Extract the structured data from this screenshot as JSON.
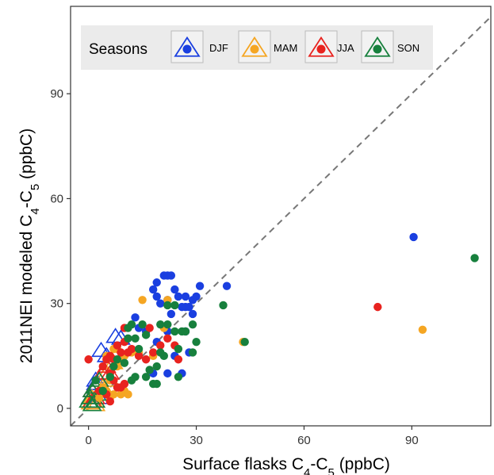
{
  "chart_data": {
    "type": "scatter",
    "xlabel": {
      "main": "Surface flasks C",
      "sub1": "4",
      "mid": "-C",
      "sub2": "5",
      "unit": " (ppbC)"
    },
    "ylabel": {
      "main": "2011NEI modeled C",
      "sub1": "4",
      "mid": "-C",
      "sub2": "5",
      "unit": " (ppbC)"
    },
    "xlim": [
      -5,
      112
    ],
    "ylim": [
      -5,
      115
    ],
    "x_ticks": [
      0,
      30,
      60,
      90
    ],
    "y_ticks": [
      0,
      30,
      60,
      90
    ],
    "grid": false,
    "reference_line": {
      "type": "1:1",
      "style": "dashed",
      "color": "#777777"
    },
    "legend": {
      "title": "Seasons",
      "position": "top-left",
      "entries": [
        {
          "label": "DJF",
          "color": "#1a3fe0"
        },
        {
          "label": "MAM",
          "color": "#f5a623"
        },
        {
          "label": "JJA",
          "color": "#e8231f"
        },
        {
          "label": "SON",
          "color": "#17803d"
        }
      ]
    },
    "series": [
      {
        "name": "DJF",
        "color": "#1a3fe0",
        "points": [
          [
            90.5,
            49
          ],
          [
            38.5,
            35
          ],
          [
            31,
            35
          ],
          [
            21,
            38
          ],
          [
            22,
            38
          ],
          [
            23,
            38
          ],
          [
            19,
            36
          ],
          [
            18,
            34
          ],
          [
            24,
            34
          ],
          [
            25,
            32
          ],
          [
            27,
            32
          ],
          [
            29,
            31
          ],
          [
            22,
            31
          ],
          [
            19,
            32
          ],
          [
            20,
            30
          ],
          [
            30,
            32
          ],
          [
            27,
            29
          ],
          [
            23,
            27
          ],
          [
            26,
            29
          ],
          [
            28,
            29
          ],
          [
            29,
            27
          ],
          [
            13,
            26
          ],
          [
            16,
            22
          ],
          [
            14,
            23
          ],
          [
            27,
            22
          ],
          [
            22,
            22
          ],
          [
            28,
            16
          ],
          [
            22,
            10
          ],
          [
            18,
            10
          ],
          [
            26,
            10
          ],
          [
            19,
            19
          ],
          [
            24,
            15
          ]
        ],
        "open_triangles": [
          [
            3.5,
            16.5
          ],
          [
            7.5,
            20.5
          ],
          [
            9,
            20
          ],
          [
            5,
            15
          ],
          [
            4,
            10
          ],
          [
            2,
            7
          ],
          [
            1,
            5
          ],
          [
            0.5,
            3
          ],
          [
            1,
            2
          ],
          [
            3,
            3
          ],
          [
            2,
            8
          ]
        ]
      },
      {
        "name": "MAM",
        "color": "#f5a623",
        "points": [
          [
            93,
            22.5
          ],
          [
            43,
            19
          ],
          [
            15,
            31
          ],
          [
            22,
            31
          ],
          [
            21,
            23
          ],
          [
            18,
            15
          ],
          [
            14,
            16
          ],
          [
            12,
            16
          ],
          [
            10,
            15
          ],
          [
            9,
            14
          ],
          [
            8,
            17
          ],
          [
            7,
            17
          ],
          [
            8,
            12
          ],
          [
            6,
            9
          ],
          [
            6,
            8
          ],
          [
            5,
            5
          ],
          [
            7,
            4
          ],
          [
            9,
            4
          ],
          [
            10,
            5
          ],
          [
            11,
            4
          ],
          [
            3,
            3
          ],
          [
            6,
            3
          ],
          [
            4,
            6
          ],
          [
            5,
            15
          ]
        ],
        "open_triangles": [
          [
            1,
            1
          ],
          [
            2,
            2
          ],
          [
            3,
            4
          ],
          [
            0.5,
            1.5
          ],
          [
            1,
            3
          ],
          [
            5,
            10
          ],
          [
            7,
            13
          ],
          [
            4,
            6
          ],
          [
            2,
            1
          ],
          [
            6,
            8
          ],
          [
            8,
            16
          ]
        ]
      },
      {
        "name": "JJA",
        "color": "#e8231f",
        "points": [
          [
            80.5,
            29
          ],
          [
            0,
            14
          ],
          [
            10,
            23
          ],
          [
            17,
            23
          ],
          [
            22,
            20
          ],
          [
            12,
            17
          ],
          [
            14,
            15
          ],
          [
            16,
            14
          ],
          [
            18,
            16
          ],
          [
            20,
            18
          ],
          [
            24,
            18
          ],
          [
            25,
            14
          ],
          [
            8,
            18
          ],
          [
            9,
            16
          ],
          [
            11,
            16
          ],
          [
            10,
            19
          ],
          [
            6,
            15
          ],
          [
            7,
            14
          ],
          [
            5,
            14
          ],
          [
            4,
            12
          ],
          [
            6,
            10
          ],
          [
            7,
            8
          ],
          [
            9,
            6
          ],
          [
            10,
            7
          ],
          [
            8,
            6
          ],
          [
            5,
            4
          ],
          [
            3,
            5
          ],
          [
            6,
            2
          ]
        ],
        "open_triangles": [
          [
            1,
            5
          ],
          [
            2,
            6
          ],
          [
            3,
            8
          ],
          [
            4,
            10
          ],
          [
            5,
            12
          ],
          [
            1,
            2
          ],
          [
            2,
            3
          ],
          [
            6,
            10
          ]
        ]
      },
      {
        "name": "SON",
        "color": "#17803d",
        "points": [
          [
            107.5,
            43
          ],
          [
            43.5,
            19
          ],
          [
            37.5,
            29.5
          ],
          [
            22,
            29.5
          ],
          [
            24,
            29.5
          ],
          [
            29,
            24
          ],
          [
            22,
            24
          ],
          [
            20,
            24
          ],
          [
            24,
            22
          ],
          [
            26,
            22
          ],
          [
            27,
            22
          ],
          [
            15,
            24
          ],
          [
            13,
            20
          ],
          [
            16,
            21
          ],
          [
            14,
            17
          ],
          [
            11,
            20
          ],
          [
            12,
            24
          ],
          [
            30,
            19
          ],
          [
            25,
            17
          ],
          [
            29,
            16
          ],
          [
            21,
            15
          ],
          [
            20,
            16
          ],
          [
            19,
            12
          ],
          [
            17,
            11
          ],
          [
            16,
            9
          ],
          [
            18,
            7
          ],
          [
            19,
            7
          ],
          [
            13,
            9
          ],
          [
            12,
            8
          ],
          [
            25,
            9
          ],
          [
            10,
            13
          ],
          [
            7,
            12
          ],
          [
            6,
            9
          ],
          [
            8,
            14
          ],
          [
            2,
            8
          ],
          [
            4,
            5
          ],
          [
            11,
            23
          ]
        ],
        "open_triangles": [
          [
            0.5,
            3
          ],
          [
            1,
            5
          ],
          [
            2,
            6
          ],
          [
            1,
            1
          ],
          [
            2,
            2
          ],
          [
            3,
            8
          ],
          [
            4,
            4
          ],
          [
            0,
            2
          ]
        ]
      }
    ]
  }
}
